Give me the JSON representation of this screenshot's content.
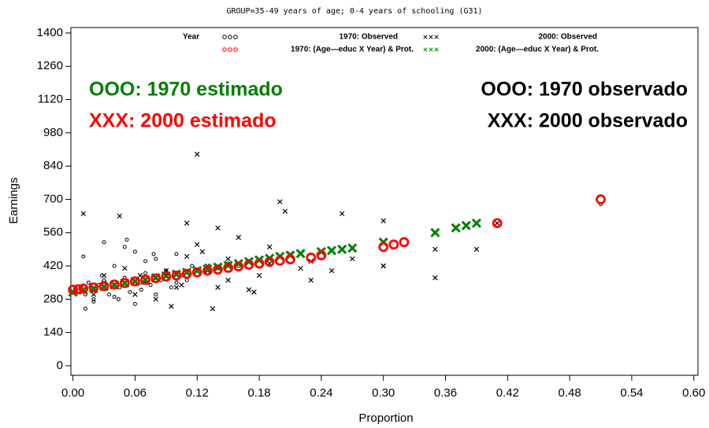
{
  "chart_data": {
    "type": "scatter",
    "title": "GROUP=35-49 years of age; 0-4 years of schooling (G31)",
    "x_label": "Proportion",
    "y_label": "Earnings",
    "legend_title": "Year",
    "annotations": [
      {
        "text": "OOO: 1970 estimado",
        "color": "#008000"
      },
      {
        "text": "XXX: 2000 estimado",
        "color": "#ff0000"
      },
      {
        "text": "OOO: 1970 observado",
        "color": "#000000"
      },
      {
        "text": "XXX: 2000 observado",
        "color": "#000000"
      }
    ],
    "xlim": [
      -0.002,
      0.604
    ],
    "ylim": [
      -40,
      1423
    ],
    "xticks": [
      {
        "value": 0,
        "label": "0.00"
      },
      0.06,
      0.12,
      0.18,
      0.24,
      {
        "value": 0.3,
        "label": "0.30"
      },
      0.36,
      0.42,
      0.48,
      0.54,
      {
        "value": 0.6,
        "label": "0.60"
      }
    ],
    "yticks": [
      0,
      140,
      280,
      420,
      560,
      700,
      840,
      980,
      1120,
      1260,
      1400
    ],
    "series": [
      {
        "name": "1970: Observed",
        "color": "#000000",
        "marker": "circle",
        "x": [
          0.003,
          0.008,
          0.012,
          0.015,
          0.02,
          0.025,
          0.03,
          0.035,
          0.04,
          0.045,
          0.05,
          0.055,
          0.06,
          0.065,
          0.07,
          0.075,
          0.08,
          0.085,
          0.09,
          0.095,
          0.1,
          0.105,
          0.11,
          0.115,
          0.12,
          0.13,
          0.14,
          0.15,
          0.16,
          0.17,
          0.01,
          0.02,
          0.03,
          0.04,
          0.05,
          0.06,
          0.07,
          0.08,
          0.09,
          0.1,
          0.012,
          0.028,
          0.044,
          0.052,
          0.066,
          0.078,
          0.51
        ],
        "values": [
          310,
          330,
          300,
          350,
          280,
          340,
          360,
          300,
          420,
          330,
          370,
          310,
          480,
          350,
          390,
          340,
          450,
          360,
          400,
          330,
          470,
          380,
          360,
          420,
          400,
          390,
          410,
          430,
          420,
          440,
          460,
          270,
          520,
          290,
          500,
          260,
          440,
          300,
          380,
          350,
          240,
          380,
          280,
          530,
          320,
          470,
          680
        ]
      },
      {
        "name": "2000: Observed",
        "color": "#000000",
        "marker": "x",
        "x": [
          0.01,
          0.02,
          0.03,
          0.045,
          0.06,
          0.07,
          0.08,
          0.09,
          0.1,
          0.11,
          0.12,
          0.13,
          0.14,
          0.15,
          0.16,
          0.17,
          0.18,
          0.19,
          0.2,
          0.21,
          0.22,
          0.23,
          0.25,
          0.26,
          0.27,
          0.3,
          0.3,
          0.35,
          0.35,
          0.38,
          0.39,
          0.41,
          0.12,
          0.125,
          0.105,
          0.14,
          0.175,
          0.205,
          0.03,
          0.05,
          0.08,
          0.11,
          0.15,
          0.19,
          0.23,
          0.3,
          0.02,
          0.065,
          0.095,
          0.135
        ],
        "values": [
          640,
          320,
          380,
          630,
          300,
          350,
          280,
          400,
          330,
          600,
          890,
          420,
          580,
          450,
          540,
          320,
          380,
          500,
          690,
          470,
          410,
          440,
          400,
          640,
          450,
          420,
          610,
          490,
          370,
          590,
          490,
          600,
          510,
          480,
          340,
          330,
          310,
          650,
          350,
          410,
          370,
          460,
          360,
          430,
          360,
          420,
          300,
          380,
          250,
          240
        ]
      },
      {
        "name": "1970: (Age—educ X Year) & Prot.",
        "color": "#ff0000",
        "marker": "circle",
        "x": [
          0,
          0.005,
          0.01,
          0.02,
          0.03,
          0.04,
          0.05,
          0.06,
          0.07,
          0.08,
          0.09,
          0.1,
          0.11,
          0.12,
          0.13,
          0.14,
          0.15,
          0.16,
          0.17,
          0.18,
          0.19,
          0.2,
          0.21,
          0.23,
          0.24,
          0.3,
          0.31,
          0.32,
          0.41,
          0.51
        ],
        "values": [
          320,
          322,
          325,
          330,
          335,
          342,
          348,
          355,
          362,
          368,
          375,
          380,
          387,
          393,
          400,
          405,
          412,
          418,
          425,
          430,
          437,
          442,
          448,
          455,
          465,
          500,
          510,
          520,
          600,
          700
        ]
      },
      {
        "name": "2000: (Age—educ X Year) & Prot.",
        "color": "#008000",
        "marker": "x",
        "x": [
          0,
          0.01,
          0.02,
          0.03,
          0.04,
          0.05,
          0.06,
          0.07,
          0.08,
          0.09,
          0.1,
          0.11,
          0.12,
          0.13,
          0.14,
          0.15,
          0.16,
          0.17,
          0.18,
          0.19,
          0.2,
          0.21,
          0.22,
          0.24,
          0.25,
          0.26,
          0.27,
          0.3,
          0.35,
          0.37,
          0.38,
          0.39
        ],
        "values": [
          310,
          318,
          325,
          333,
          340,
          348,
          355,
          362,
          370,
          378,
          385,
          393,
          400,
          408,
          415,
          422,
          430,
          438,
          445,
          452,
          460,
          465,
          472,
          480,
          485,
          490,
          495,
          520,
          560,
          580,
          590,
          600
        ]
      }
    ]
  }
}
